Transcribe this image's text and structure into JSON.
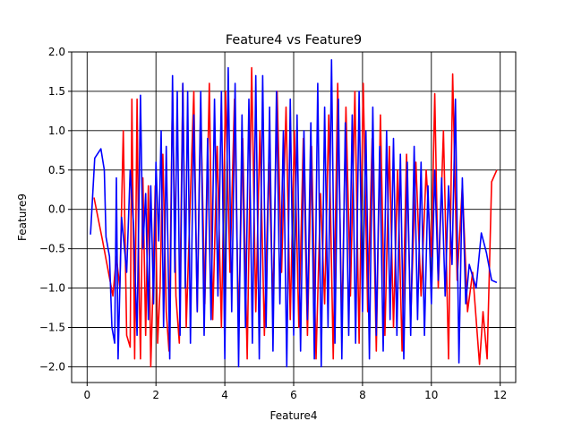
{
  "chart_data": {
    "type": "line",
    "title": "Feature4 vs Feature9",
    "xlabel": "Feature4",
    "ylabel": "Feature9",
    "xlim": [
      -0.45,
      12.45
    ],
    "ylim": [
      -2.2,
      2.0
    ],
    "xticks": [
      0,
      2,
      4,
      6,
      8,
      10,
      12
    ],
    "yticks": [
      -2.0,
      -1.5,
      -1.0,
      -0.5,
      0.0,
      0.5,
      1.0,
      1.5,
      2.0
    ],
    "xtick_labels": [
      "0",
      "2",
      "4",
      "6",
      "8",
      "10",
      "12"
    ],
    "ytick_labels": [
      "−2.0",
      "−1.5",
      "−1.0",
      "−0.5",
      "0.0",
      "0.5",
      "1.0",
      "1.5",
      "2.0"
    ],
    "grid": true,
    "legend": false,
    "series": [
      {
        "color": "#ff0000",
        "x": [
          0.2,
          0.45,
          0.75,
          0.85,
          0.95,
          1.05,
          1.15,
          1.25,
          1.3,
          1.38,
          1.45,
          1.5,
          1.55,
          1.62,
          1.7,
          1.78,
          1.85,
          1.92,
          1.98,
          2.05,
          2.12,
          2.2,
          2.3,
          2.38,
          2.48,
          2.58,
          2.68,
          2.78,
          2.88,
          2.98,
          3.1,
          3.2,
          3.3,
          3.42,
          3.55,
          3.65,
          3.78,
          3.9,
          4.02,
          4.15,
          4.28,
          4.4,
          4.52,
          4.65,
          4.78,
          4.9,
          5.02,
          5.15,
          5.28,
          5.4,
          5.52,
          5.65,
          5.78,
          5.9,
          6.02,
          6.15,
          6.28,
          6.4,
          6.52,
          6.65,
          6.78,
          6.9,
          7.02,
          7.15,
          7.28,
          7.4,
          7.52,
          7.65,
          7.78,
          7.9,
          8.02,
          8.15,
          8.28,
          8.4,
          8.52,
          8.65,
          8.78,
          8.9,
          9.02,
          9.15,
          9.28,
          9.4,
          9.55,
          9.7,
          9.85,
          10.0,
          10.1,
          10.2,
          10.35,
          10.5,
          10.62,
          10.75,
          10.9,
          11.05,
          11.2,
          11.4,
          11.5,
          11.62,
          11.75,
          11.9
        ],
        "y": [
          0.15,
          -0.4,
          -1.1,
          -0.6,
          -1.0,
          1.0,
          -1.6,
          -1.75,
          1.4,
          -1.9,
          1.4,
          -0.7,
          -1.9,
          0.4,
          -1.6,
          0.3,
          -2.0,
          -0.9,
          0.3,
          -1.7,
          -1.0,
          0.7,
          -1.3,
          -1.8,
          1.5,
          -1.1,
          -1.7,
          1.6,
          -1.5,
          -0.1,
          1.5,
          -1.3,
          1.3,
          -1.2,
          1.6,
          -1.4,
          0.8,
          -1.5,
          1.5,
          -0.8,
          1.4,
          -1.5,
          0.9,
          -1.9,
          1.8,
          -1.3,
          1.0,
          -1.6,
          0.6,
          -1.2,
          1.5,
          -0.8,
          1.3,
          -1.4,
          1.0,
          -1.5,
          0.9,
          -1.6,
          0.8,
          -1.9,
          0.2,
          -1.2,
          1.2,
          -1.9,
          1.6,
          -1.5,
          1.3,
          -1.1,
          1.5,
          -1.7,
          1.6,
          -1.3,
          0.9,
          -1.8,
          1.2,
          -1.6,
          0.8,
          -1.5,
          0.5,
          -1.8,
          0.7,
          -1.4,
          0.6,
          -1.1,
          0.5,
          -0.6,
          1.47,
          -1.0,
          1.0,
          -1.9,
          1.72,
          -0.9,
          0.3,
          -1.3,
          -0.8,
          -1.97,
          -1.3,
          -1.9,
          0.35,
          0.5
        ]
      },
      {
        "color": "#0000ff",
        "x": [
          0.1,
          0.22,
          0.4,
          0.5,
          0.55,
          0.65,
          0.72,
          0.8,
          0.85,
          0.9,
          1.0,
          1.15,
          1.25,
          1.35,
          1.45,
          1.55,
          1.62,
          1.7,
          1.78,
          1.85,
          1.93,
          2.0,
          2.08,
          2.15,
          2.22,
          2.3,
          2.4,
          2.48,
          2.55,
          2.62,
          2.7,
          2.78,
          2.85,
          2.92,
          3.0,
          3.1,
          3.2,
          3.3,
          3.4,
          3.5,
          3.6,
          3.7,
          3.8,
          3.9,
          4.0,
          4.1,
          4.2,
          4.3,
          4.4,
          4.5,
          4.6,
          4.7,
          4.8,
          4.9,
          5.0,
          5.1,
          5.2,
          5.3,
          5.4,
          5.5,
          5.6,
          5.7,
          5.8,
          5.9,
          6.0,
          6.1,
          6.2,
          6.3,
          6.4,
          6.5,
          6.6,
          6.7,
          6.8,
          6.9,
          7.0,
          7.1,
          7.2,
          7.3,
          7.4,
          7.5,
          7.6,
          7.7,
          7.8,
          7.9,
          8.0,
          8.1,
          8.2,
          8.3,
          8.4,
          8.5,
          8.6,
          8.7,
          8.8,
          8.9,
          9.0,
          9.1,
          9.2,
          9.3,
          9.4,
          9.5,
          9.6,
          9.7,
          9.8,
          9.9,
          10.0,
          10.1,
          10.2,
          10.3,
          10.4,
          10.5,
          10.6,
          10.7,
          10.8,
          10.9,
          11.0,
          11.1,
          11.2,
          11.3,
          11.45,
          11.6,
          11.75,
          11.9
        ],
        "y": [
          -0.32,
          0.65,
          0.77,
          0.5,
          -0.35,
          -0.6,
          -1.5,
          -1.7,
          0.4,
          -1.9,
          -0.1,
          -0.8,
          0.5,
          -0.2,
          -1.6,
          1.45,
          -0.5,
          0.2,
          -1.4,
          0.3,
          -1.2,
          0.6,
          -0.4,
          1.0,
          -1.5,
          0.8,
          -1.9,
          1.7,
          -0.8,
          1.5,
          -1.6,
          1.6,
          -1.0,
          1.5,
          -1.7,
          1.2,
          -1.3,
          1.5,
          -1.6,
          0.9,
          -1.4,
          1.4,
          -1.1,
          1.5,
          -1.9,
          1.8,
          -1.3,
          1.6,
          -2.0,
          1.2,
          -1.5,
          1.4,
          -1.7,
          1.7,
          -1.9,
          1.7,
          -1.5,
          1.3,
          -1.8,
          1.5,
          -1.2,
          1.0,
          -2.0,
          1.4,
          -1.6,
          1.2,
          -1.8,
          1.0,
          -1.4,
          1.1,
          -1.9,
          1.6,
          -2.0,
          1.3,
          -1.5,
          1.9,
          -1.7,
          1.4,
          -1.9,
          1.1,
          -1.6,
          1.2,
          -1.7,
          1.5,
          -1.3,
          1.0,
          -1.9,
          1.3,
          -1.6,
          0.8,
          -1.8,
          1.0,
          -1.4,
          0.9,
          -1.6,
          0.7,
          -1.9,
          0.6,
          -1.6,
          0.8,
          -1.4,
          0.6,
          -1.6,
          0.3,
          -1.2,
          0.5,
          -0.9,
          0.4,
          -1.1,
          0.3,
          -0.7,
          1.4,
          -1.95,
          0.4,
          -1.2,
          -0.7,
          -0.85,
          -1.0,
          -0.3,
          -0.55,
          -0.9,
          -0.93
        ]
      }
    ]
  }
}
